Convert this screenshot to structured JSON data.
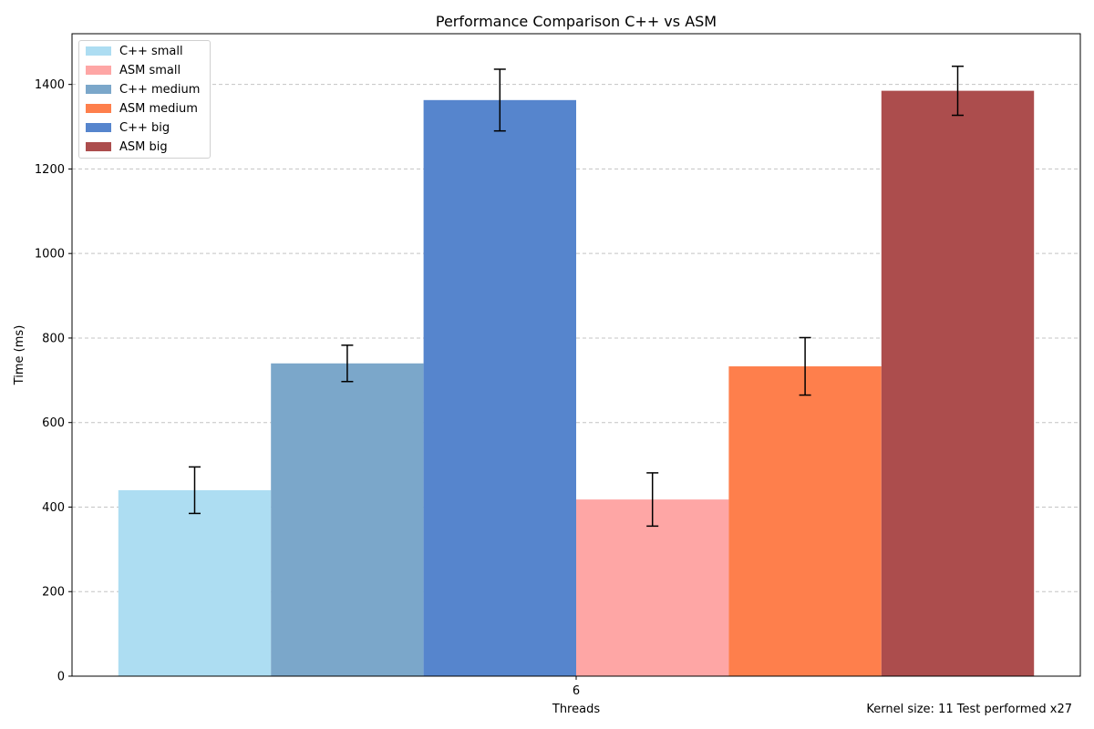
{
  "chart_data": {
    "type": "bar",
    "title": "Performance Comparison C++ vs ASM",
    "xlabel": "Threads",
    "ylabel": "Time (ms)",
    "categories": [
      "6"
    ],
    "ylim": [
      0,
      1520
    ],
    "yticks": [
      0,
      200,
      400,
      600,
      800,
      1000,
      1200,
      1400
    ],
    "grid": "y dashed",
    "legend_position": "top-left",
    "footnote": "Kernel size: 11 Test performed x27",
    "series": [
      {
        "name": "C++ small",
        "values": [
          440
        ],
        "error": [
          55
        ],
        "color": "#ADDDF2"
      },
      {
        "name": "C++ medium",
        "values": [
          740
        ],
        "error": [
          43
        ],
        "color": "#7BA7CA"
      },
      {
        "name": "C++ big",
        "values": [
          1363
        ],
        "error": [
          73
        ],
        "color": "#5685CD"
      },
      {
        "name": "ASM small",
        "values": [
          418
        ],
        "error": [
          63
        ],
        "color": "#FEA6A5"
      },
      {
        "name": "ASM medium",
        "values": [
          733
        ],
        "error": [
          68
        ],
        "color": "#FE7F4C"
      },
      {
        "name": "ASM big",
        "values": [
          1385
        ],
        "error": [
          58
        ],
        "color": "#AC4D4D"
      }
    ],
    "legend_order": [
      "C++ small",
      "ASM small",
      "C++ medium",
      "ASM medium",
      "C++ big",
      "ASM big"
    ]
  }
}
